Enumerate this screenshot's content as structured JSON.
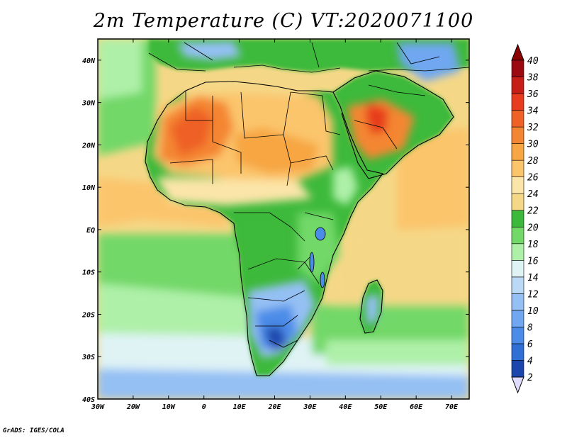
{
  "title": "2m Temperature (C) VT:2020071100",
  "credit": "GrADS: IGES/COLA",
  "map": {
    "projection": "lat-lon",
    "lon_range": [
      -30,
      75
    ],
    "lat_range": [
      -40,
      45
    ],
    "lon_ticks": [
      "30W",
      "20W",
      "10W",
      "0",
      "10E",
      "20E",
      "30E",
      "40E",
      "50E",
      "60E",
      "70E"
    ],
    "lat_ticks": [
      "40S",
      "30S",
      "20S",
      "10S",
      "EQ",
      "10N",
      "20N",
      "30N",
      "40N"
    ],
    "ocean_color": "#f5d887",
    "land_color": "#3cb93a"
  },
  "colorbar": {
    "levels": [
      "2",
      "4",
      "6",
      "8",
      "10",
      "12",
      "14",
      "16",
      "18",
      "20",
      "22",
      "24",
      "26",
      "28",
      "30",
      "32",
      "34",
      "36",
      "38",
      "40"
    ],
    "colors": [
      "#1e2f8c",
      "#1b46ad",
      "#2f6fd6",
      "#4b8ce8",
      "#70a7f0",
      "#94c0f4",
      "#b9d9f7",
      "#dff3f5",
      "#aef0a8",
      "#72d867",
      "#3cb93a",
      "#f5d887",
      "#fbe5a8",
      "#fbc56c",
      "#f7a643",
      "#f48633",
      "#ee6127",
      "#e73d1e",
      "#c71e18",
      "#9b0a10"
    ],
    "under_color": "#e0dcff",
    "over_color": "#8b0000"
  }
}
